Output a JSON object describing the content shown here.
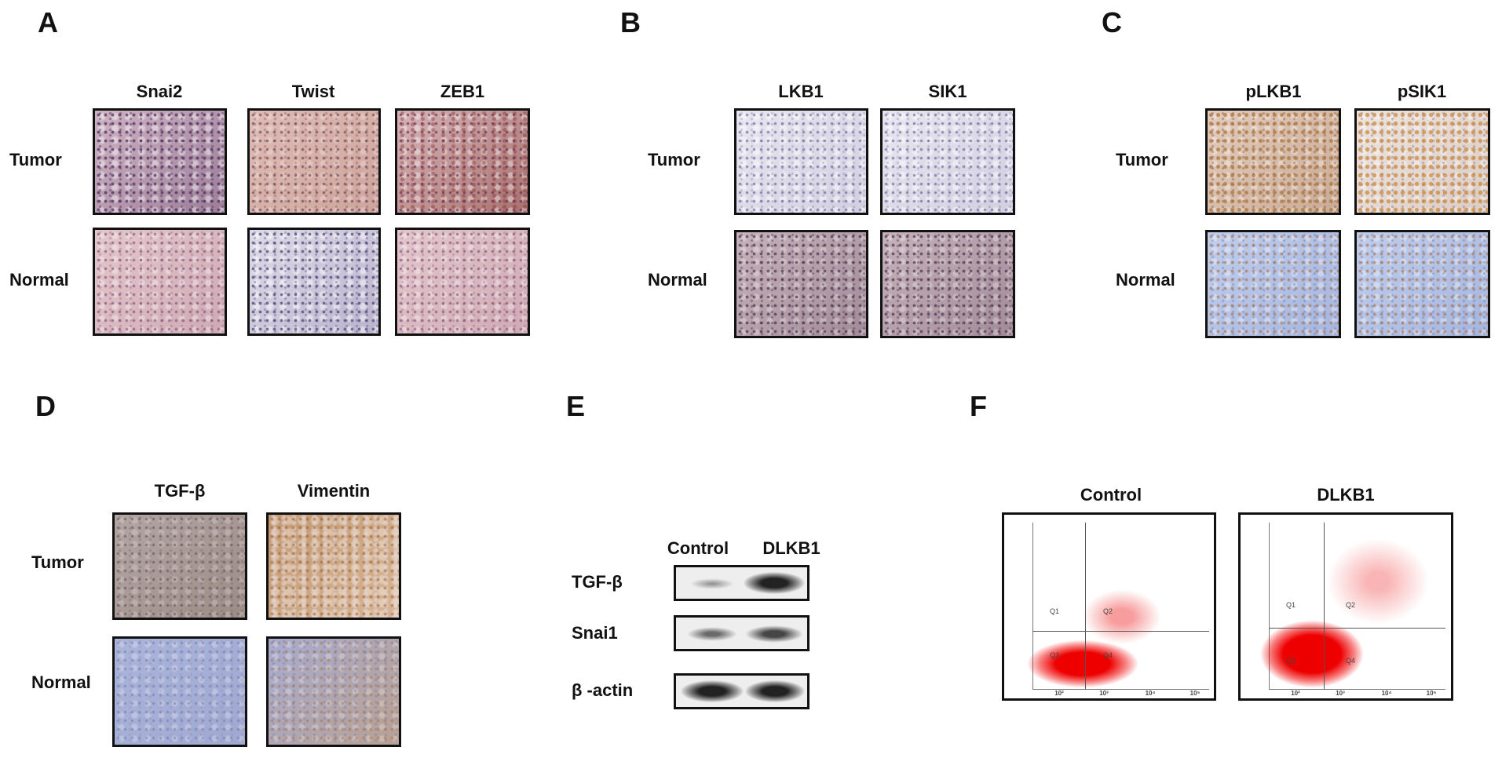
{
  "panels": [
    {
      "letter": "A",
      "columns": [
        "Snai2",
        "Twist",
        "ZEB1"
      ],
      "rows": [
        "Tumor",
        "Normal"
      ]
    },
    {
      "letter": "B",
      "columns": [
        "LKB1",
        "SIK1"
      ],
      "rows": [
        "Tumor",
        "Normal"
      ]
    },
    {
      "letter": "C",
      "columns": [
        "pLKB1",
        "pSIK1"
      ],
      "rows": [
        "Tumor",
        "Normal"
      ]
    },
    {
      "letter": "D",
      "columns": [
        "TGF-β",
        "Vimentin"
      ],
      "rows": [
        "Tumor",
        "Normal"
      ]
    },
    {
      "letter": "E",
      "columns": [
        "Control",
        "DLKB1"
      ],
      "rows": [
        "TGF-β",
        "Snai1",
        "β -actin"
      ]
    },
    {
      "letter": "F",
      "columns": [
        "Control",
        "DLKB1"
      ],
      "quadrants": [
        "Q1",
        "Q2",
        "Q3",
        "Q4"
      ],
      "axis_ticks": [
        "10²",
        "10³",
        "10⁴",
        "10⁵"
      ]
    }
  ]
}
